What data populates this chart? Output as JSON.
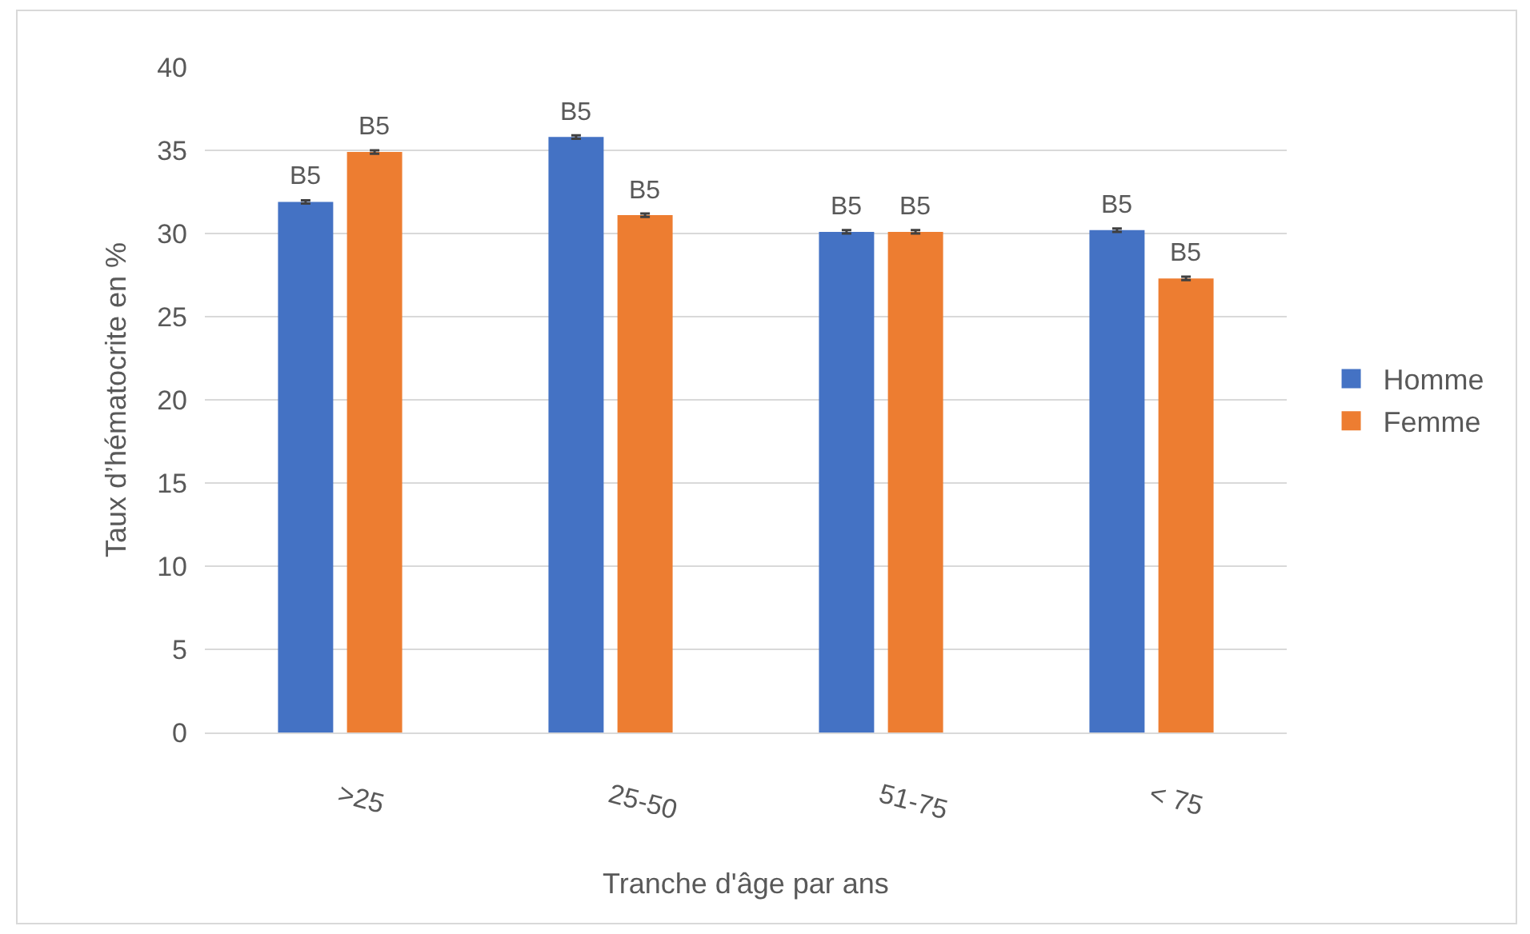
{
  "chart_data": {
    "type": "bar",
    "xlabel": "Tranche d'âge par ans",
    "ylabel": "Taux d’hématocrite en %",
    "categories": [
      ">25",
      "25-50",
      "51-75",
      "< 75"
    ],
    "series": [
      {
        "name": "Homme",
        "color": "#4472c4",
        "values": [
          31.9,
          35.8,
          30.1,
          30.2
        ],
        "errors": [
          0.1,
          0.1,
          0.1,
          0.1
        ]
      },
      {
        "name": "Femme",
        "color": "#ed7d31",
        "values": [
          34.9,
          31.1,
          30.1,
          27.3
        ],
        "errors": [
          0.1,
          0.1,
          0.1,
          0.1
        ]
      }
    ],
    "ylim": [
      0,
      40
    ],
    "yticks": [
      0,
      5,
      10,
      15,
      20,
      25,
      30,
      35,
      40
    ],
    "grid": "y",
    "legend": "right",
    "annotations": [
      "B5",
      "B5",
      "B5",
      "B5",
      "B5",
      "B5",
      "B5",
      "B5"
    ]
  }
}
